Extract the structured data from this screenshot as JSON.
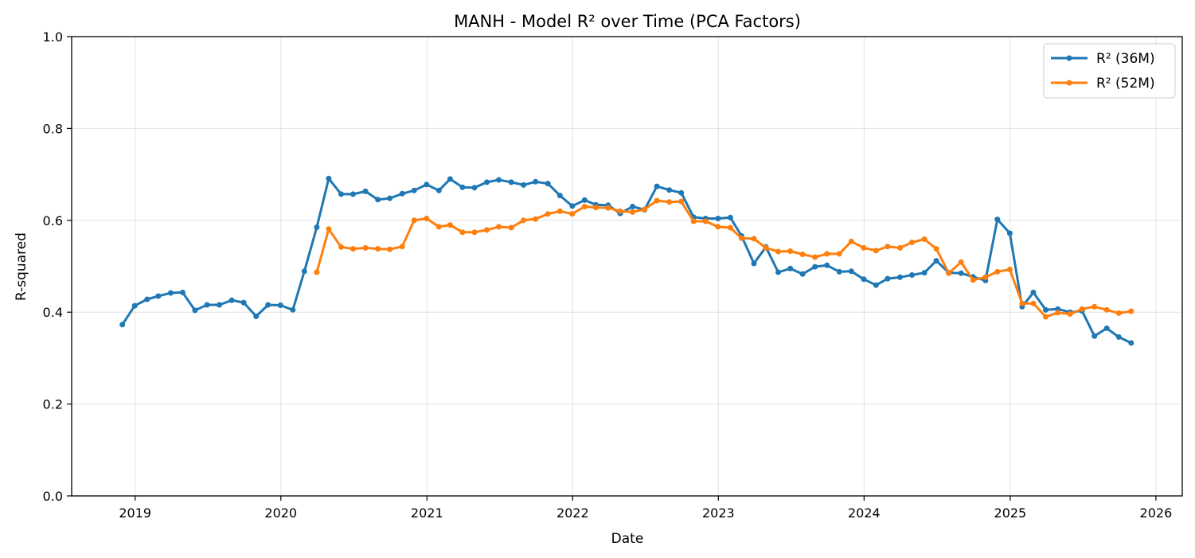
{
  "chart_data": {
    "type": "line",
    "title": "MANH - Model R² over Time (PCA Factors)",
    "xlabel": "Date",
    "ylabel": "R-squared",
    "xlim": [
      "2018-07-26",
      "2026-03-08"
    ],
    "ylim": [
      0,
      1
    ],
    "x_ticks": [
      "2019",
      "2020",
      "2021",
      "2022",
      "2023",
      "2024",
      "2025",
      "2026"
    ],
    "y_ticks": [
      "0.0",
      "0.2",
      "0.4",
      "0.6",
      "0.8",
      "1.0"
    ],
    "grid": true,
    "legend_position": "top-right",
    "series": [
      {
        "name": "R² (36M)",
        "color": "#1f77b4",
        "points": [
          [
            "2018-11-30",
            0.373
          ],
          [
            "2018-12-31",
            0.414
          ],
          [
            "2019-01-31",
            0.428
          ],
          [
            "2019-02-28",
            0.435
          ],
          [
            "2019-03-31",
            0.442
          ],
          [
            "2019-04-30",
            0.443
          ],
          [
            "2019-05-31",
            0.404
          ],
          [
            "2019-06-30",
            0.416
          ],
          [
            "2019-07-31",
            0.416
          ],
          [
            "2019-08-31",
            0.426
          ],
          [
            "2019-09-30",
            0.421
          ],
          [
            "2019-10-31",
            0.391
          ],
          [
            "2019-11-30",
            0.416
          ],
          [
            "2019-12-31",
            0.415
          ],
          [
            "2020-01-31",
            0.405
          ],
          [
            "2020-02-29",
            0.489
          ],
          [
            "2020-03-31",
            0.585
          ],
          [
            "2020-04-30",
            0.691
          ],
          [
            "2020-05-31",
            0.657
          ],
          [
            "2020-06-30",
            0.657
          ],
          [
            "2020-07-31",
            0.663
          ],
          [
            "2020-08-31",
            0.645
          ],
          [
            "2020-09-30",
            0.648
          ],
          [
            "2020-10-31",
            0.658
          ],
          [
            "2020-11-30",
            0.665
          ],
          [
            "2020-12-31",
            0.678
          ],
          [
            "2021-01-31",
            0.665
          ],
          [
            "2021-02-28",
            0.69
          ],
          [
            "2021-03-31",
            0.672
          ],
          [
            "2021-04-30",
            0.671
          ],
          [
            "2021-05-31",
            0.683
          ],
          [
            "2021-06-30",
            0.688
          ],
          [
            "2021-07-31",
            0.683
          ],
          [
            "2021-08-31",
            0.677
          ],
          [
            "2021-09-30",
            0.684
          ],
          [
            "2021-10-31",
            0.68
          ],
          [
            "2021-11-30",
            0.654
          ],
          [
            "2021-12-31",
            0.631
          ],
          [
            "2022-01-31",
            0.644
          ],
          [
            "2022-02-28",
            0.634
          ],
          [
            "2022-03-31",
            0.633
          ],
          [
            "2022-04-30",
            0.615
          ],
          [
            "2022-05-31",
            0.63
          ],
          [
            "2022-06-30",
            0.623
          ],
          [
            "2022-07-31",
            0.674
          ],
          [
            "2022-08-31",
            0.666
          ],
          [
            "2022-09-30",
            0.66
          ],
          [
            "2022-10-31",
            0.607
          ],
          [
            "2022-11-30",
            0.604
          ],
          [
            "2022-12-31",
            0.604
          ],
          [
            "2023-01-31",
            0.606
          ],
          [
            "2023-02-28",
            0.566
          ],
          [
            "2023-03-31",
            0.506
          ],
          [
            "2023-04-30",
            0.542
          ],
          [
            "2023-05-31",
            0.487
          ],
          [
            "2023-06-30",
            0.495
          ],
          [
            "2023-07-31",
            0.483
          ],
          [
            "2023-08-31",
            0.499
          ],
          [
            "2023-09-30",
            0.502
          ],
          [
            "2023-10-31",
            0.488
          ],
          [
            "2023-11-30",
            0.489
          ],
          [
            "2023-12-31",
            0.472
          ],
          [
            "2024-01-31",
            0.459
          ],
          [
            "2024-02-29",
            0.473
          ],
          [
            "2024-03-31",
            0.476
          ],
          [
            "2024-04-30",
            0.481
          ],
          [
            "2024-05-31",
            0.486
          ],
          [
            "2024-06-30",
            0.512
          ],
          [
            "2024-07-31",
            0.486
          ],
          [
            "2024-08-31",
            0.485
          ],
          [
            "2024-09-30",
            0.477
          ],
          [
            "2024-10-31",
            0.469
          ],
          [
            "2024-11-30",
            0.602
          ],
          [
            "2024-12-31",
            0.572
          ],
          [
            "2025-01-31",
            0.412
          ],
          [
            "2025-02-28",
            0.443
          ],
          [
            "2025-03-31",
            0.405
          ],
          [
            "2025-04-30",
            0.407
          ],
          [
            "2025-05-31",
            0.4
          ],
          [
            "2025-06-30",
            0.403
          ],
          [
            "2025-07-31",
            0.348
          ],
          [
            "2025-08-31",
            0.365
          ],
          [
            "2025-09-30",
            0.346
          ],
          [
            "2025-10-31",
            0.333
          ]
        ]
      },
      {
        "name": "R² (52M)",
        "color": "#ff7f0e",
        "points": [
          [
            "2020-03-31",
            0.487
          ],
          [
            "2020-04-30",
            0.581
          ],
          [
            "2020-05-31",
            0.542
          ],
          [
            "2020-06-30",
            0.538
          ],
          [
            "2020-07-31",
            0.54
          ],
          [
            "2020-08-31",
            0.538
          ],
          [
            "2020-09-30",
            0.537
          ],
          [
            "2020-10-31",
            0.543
          ],
          [
            "2020-11-30",
            0.6
          ],
          [
            "2020-12-31",
            0.604
          ],
          [
            "2021-01-31",
            0.586
          ],
          [
            "2021-02-28",
            0.59
          ],
          [
            "2021-03-31",
            0.574
          ],
          [
            "2021-04-30",
            0.574
          ],
          [
            "2021-05-31",
            0.579
          ],
          [
            "2021-06-30",
            0.586
          ],
          [
            "2021-07-31",
            0.584
          ],
          [
            "2021-08-31",
            0.6
          ],
          [
            "2021-09-30",
            0.603
          ],
          [
            "2021-10-31",
            0.614
          ],
          [
            "2021-11-30",
            0.62
          ],
          [
            "2021-12-31",
            0.614
          ],
          [
            "2022-01-31",
            0.63
          ],
          [
            "2022-02-28",
            0.628
          ],
          [
            "2022-03-31",
            0.627
          ],
          [
            "2022-04-30",
            0.62
          ],
          [
            "2022-05-31",
            0.618
          ],
          [
            "2022-06-30",
            0.624
          ],
          [
            "2022-07-31",
            0.643
          ],
          [
            "2022-08-31",
            0.64
          ],
          [
            "2022-09-30",
            0.641
          ],
          [
            "2022-10-31",
            0.598
          ],
          [
            "2022-11-30",
            0.598
          ],
          [
            "2022-12-31",
            0.586
          ],
          [
            "2023-01-31",
            0.584
          ],
          [
            "2023-02-28",
            0.561
          ],
          [
            "2023-03-31",
            0.56
          ],
          [
            "2023-04-30",
            0.54
          ],
          [
            "2023-05-31",
            0.532
          ],
          [
            "2023-06-30",
            0.533
          ],
          [
            "2023-07-31",
            0.526
          ],
          [
            "2023-08-31",
            0.52
          ],
          [
            "2023-09-30",
            0.527
          ],
          [
            "2023-10-31",
            0.527
          ],
          [
            "2023-11-30",
            0.554
          ],
          [
            "2023-12-31",
            0.54
          ],
          [
            "2024-01-31",
            0.534
          ],
          [
            "2024-02-29",
            0.543
          ],
          [
            "2024-03-31",
            0.54
          ],
          [
            "2024-04-30",
            0.552
          ],
          [
            "2024-05-31",
            0.559
          ],
          [
            "2024-06-30",
            0.538
          ],
          [
            "2024-07-31",
            0.485
          ],
          [
            "2024-08-31",
            0.509
          ],
          [
            "2024-09-30",
            0.47
          ],
          [
            "2024-10-31",
            0.476
          ],
          [
            "2024-11-30",
            0.488
          ],
          [
            "2024-12-31",
            0.493
          ],
          [
            "2025-01-31",
            0.419
          ],
          [
            "2025-02-28",
            0.419
          ],
          [
            "2025-03-31",
            0.39
          ],
          [
            "2025-04-30",
            0.399
          ],
          [
            "2025-05-31",
            0.396
          ],
          [
            "2025-06-30",
            0.407
          ],
          [
            "2025-07-31",
            0.412
          ],
          [
            "2025-08-31",
            0.405
          ],
          [
            "2025-09-30",
            0.398
          ],
          [
            "2025-10-31",
            0.402
          ]
        ]
      }
    ]
  }
}
